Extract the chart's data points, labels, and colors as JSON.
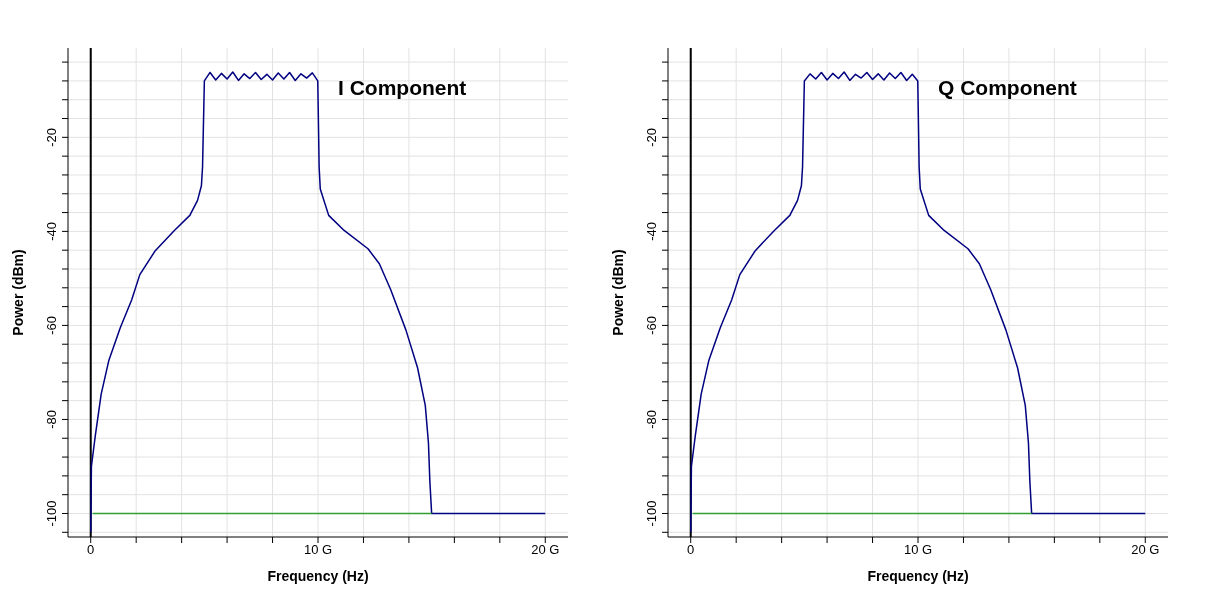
{
  "chart_data": [
    {
      "type": "line",
      "xlabel": "Frequency (Hz)",
      "ylabel": "Power (dBm)",
      "annotations": [
        "I Component"
      ],
      "xlim": [
        -1,
        21
      ],
      "ylim": [
        -105,
        -1
      ],
      "xticks": [
        0,
        {
          "value": 2,
          "label": null
        },
        {
          "value": 4,
          "label": null
        },
        {
          "value": 6,
          "label": null
        },
        {
          "value": 8,
          "label": null
        },
        {
          "value": 10,
          "label": "10 G"
        },
        {
          "value": 12,
          "label": null
        },
        {
          "value": 14,
          "label": null
        },
        {
          "value": 16,
          "label": null
        },
        {
          "value": 18,
          "label": null
        },
        {
          "value": 20,
          "label": "20 G"
        }
      ],
      "yticks": [
        {
          "value": -104,
          "label": null
        },
        -100,
        {
          "value": -96,
          "label": null
        },
        {
          "value": -92,
          "label": null
        },
        {
          "value": -88,
          "label": null
        },
        {
          "value": -84,
          "label": null
        },
        -80,
        {
          "value": -76,
          "label": null
        },
        {
          "value": -72,
          "label": null
        },
        {
          "value": -68,
          "label": null
        },
        {
          "value": -64,
          "label": null
        },
        -60,
        {
          "value": -56,
          "label": null
        },
        {
          "value": -52,
          "label": null
        },
        {
          "value": -48,
          "label": null
        },
        {
          "value": -44,
          "label": null
        },
        -40,
        {
          "value": -36,
          "label": null
        },
        {
          "value": -32,
          "label": null
        },
        {
          "value": -28,
          "label": null
        },
        {
          "value": -24,
          "label": null
        },
        -20,
        {
          "value": -16,
          "label": null
        },
        {
          "value": -12,
          "label": null
        },
        {
          "value": -8,
          "label": null
        },
        {
          "value": -4,
          "label": null
        }
      ],
      "grid": true,
      "ref_lines": [
        {
          "axis": "x",
          "value": 0,
          "color": "#000000"
        }
      ],
      "series": [
        {
          "color": "#000080",
          "x": [
            0,
            0.03,
            0.2,
            0.46,
            0.8,
            1.3,
            1.8,
            2.16,
            2.84,
            3.68,
            4.36,
            4.7,
            4.87,
            4.92,
            5,
            5.25,
            5.5,
            5.75,
            6,
            6.25,
            6.5,
            6.75,
            7,
            7.25,
            7.5,
            7.75,
            8,
            8.25,
            8.5,
            8.75,
            9,
            9.25,
            9.5,
            9.75,
            9.99,
            10.05,
            10.1,
            10.47,
            11.15,
            12.2,
            12.7,
            13.2,
            13.87,
            14.38,
            14.72,
            14.86,
            14.92,
            15,
            20
          ],
          "values": [
            -104,
            -90,
            -83.5,
            -74.6,
            -67.4,
            -60.5,
            -54.6,
            -49.2,
            -44.1,
            -39.8,
            -36.6,
            -33.4,
            -30.3,
            -26.3,
            -8,
            -6.2,
            -7.8,
            -6.4,
            -7.6,
            -6.1,
            -7.9,
            -6.5,
            -7.5,
            -6.2,
            -7.7,
            -6.6,
            -7.8,
            -6.3,
            -7.6,
            -6.2,
            -7.9,
            -6.5,
            -7.4,
            -6.3,
            -8,
            -26.3,
            -31,
            -36.6,
            -39.8,
            -43.7,
            -46.9,
            -52.4,
            -61,
            -69,
            -77,
            -85,
            -93,
            -100,
            -100
          ]
        },
        {
          "color": "#33a033",
          "x": [
            0.08,
            15
          ],
          "values": [
            -100,
            -100
          ]
        }
      ]
    },
    {
      "type": "line",
      "xlabel": "Frequency (Hz)",
      "ylabel": "Power (dBm)",
      "annotations": [
        "Q Component"
      ],
      "xlim": [
        -1,
        21
      ],
      "ylim": [
        -105,
        -1
      ],
      "xticks": [
        0,
        {
          "value": 2,
          "label": null
        },
        {
          "value": 4,
          "label": null
        },
        {
          "value": 6,
          "label": null
        },
        {
          "value": 8,
          "label": null
        },
        {
          "value": 10,
          "label": "10 G"
        },
        {
          "value": 12,
          "label": null
        },
        {
          "value": 14,
          "label": null
        },
        {
          "value": 16,
          "label": null
        },
        {
          "value": 18,
          "label": null
        },
        {
          "value": 20,
          "label": "20 G"
        }
      ],
      "yticks": [
        {
          "value": -104,
          "label": null
        },
        -100,
        {
          "value": -96,
          "label": null
        },
        {
          "value": -92,
          "label": null
        },
        {
          "value": -88,
          "label": null
        },
        {
          "value": -84,
          "label": null
        },
        -80,
        {
          "value": -76,
          "label": null
        },
        {
          "value": -72,
          "label": null
        },
        {
          "value": -68,
          "label": null
        },
        {
          "value": -64,
          "label": null
        },
        -60,
        {
          "value": -56,
          "label": null
        },
        {
          "value": -52,
          "label": null
        },
        {
          "value": -48,
          "label": null
        },
        {
          "value": -44,
          "label": null
        },
        -40,
        {
          "value": -36,
          "label": null
        },
        {
          "value": -32,
          "label": null
        },
        {
          "value": -28,
          "label": null
        },
        {
          "value": -24,
          "label": null
        },
        -20,
        {
          "value": -16,
          "label": null
        },
        {
          "value": -12,
          "label": null
        },
        {
          "value": -8,
          "label": null
        },
        {
          "value": -4,
          "label": null
        }
      ],
      "grid": true,
      "ref_lines": [
        {
          "axis": "x",
          "value": 0,
          "color": "#000000"
        }
      ],
      "series": [
        {
          "color": "#000080",
          "x": [
            0,
            0.03,
            0.2,
            0.46,
            0.8,
            1.3,
            1.8,
            2.16,
            2.84,
            3.68,
            4.36,
            4.7,
            4.87,
            4.92,
            5,
            5.25,
            5.5,
            5.75,
            6,
            6.25,
            6.5,
            6.75,
            7,
            7.25,
            7.5,
            7.75,
            8,
            8.25,
            8.5,
            8.75,
            9,
            9.25,
            9.5,
            9.75,
            9.99,
            10.05,
            10.1,
            10.47,
            11.15,
            12.2,
            12.7,
            13.2,
            13.87,
            14.38,
            14.72,
            14.86,
            14.92,
            15,
            20
          ],
          "values": [
            -104,
            -90,
            -83.5,
            -74.6,
            -67.4,
            -60.5,
            -54.6,
            -49.2,
            -44.1,
            -39.8,
            -36.6,
            -33.4,
            -30.3,
            -26.3,
            -8,
            -6.5,
            -7.6,
            -6.2,
            -7.8,
            -6.4,
            -7.5,
            -6.1,
            -7.9,
            -6.6,
            -7.4,
            -6.2,
            -7.7,
            -6.5,
            -7.8,
            -6.3,
            -7.5,
            -6.2,
            -7.9,
            -6.6,
            -8,
            -26.3,
            -31,
            -36.6,
            -39.8,
            -43.7,
            -46.9,
            -52.4,
            -61,
            -69,
            -77,
            -85,
            -93,
            -100,
            -100
          ]
        },
        {
          "color": "#33a033",
          "x": [
            0.08,
            15
          ],
          "values": [
            -100,
            -100
          ]
        }
      ]
    }
  ]
}
